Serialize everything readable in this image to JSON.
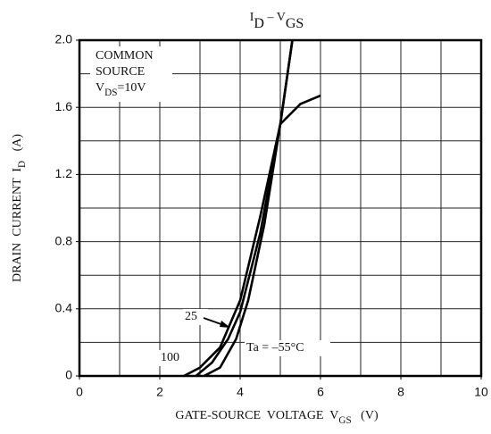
{
  "chart_data": {
    "type": "line",
    "title": [
      {
        "text": "I"
      },
      {
        "text": "D",
        "sub": true
      },
      {
        "text": " – "
      },
      {
        "text": "V"
      },
      {
        "text": "GS",
        "sub": true
      }
    ],
    "xlabel": [
      {
        "text": "GATE-SOURCE  VOLTAGE  "
      },
      {
        "text": "V"
      },
      {
        "text": "GS",
        "sub": true
      },
      {
        "text": "   (V)"
      }
    ],
    "ylabel": [
      {
        "text": "DRAIN  CURRENT  I"
      },
      {
        "text": "D",
        "sub": true
      },
      {
        "text": "   (A)"
      }
    ],
    "annotation": [
      [
        {
          "text": "COMMON"
        }
      ],
      [
        {
          "text": "SOURCE"
        }
      ],
      [
        {
          "text": "V"
        },
        {
          "text": "DS",
          "sub": true
        },
        {
          "text": "=10V"
        }
      ]
    ],
    "xlim": [
      0,
      10
    ],
    "ylim": [
      0,
      2
    ],
    "xticks": [
      0,
      2,
      4,
      6,
      8,
      10
    ],
    "yticks": [
      0,
      0.4,
      0.8,
      1.2,
      1.6,
      {
        "value": 2,
        "label": "2.0"
      }
    ],
    "xgrid": [
      1,
      2,
      3,
      4,
      5,
      6,
      7,
      8,
      9
    ],
    "ygrid": [
      0.2,
      0.4,
      0.6,
      0.8,
      1,
      1.2,
      1.4,
      1.6,
      1.8
    ],
    "grid": true,
    "series": [
      {
        "name": "100",
        "color": "#000",
        "x": [
          2.6,
          3.0,
          3.5,
          4.0,
          4.5,
          5.0,
          5.5,
          6.0
        ],
        "values": [
          0,
          0.05,
          0.17,
          0.45,
          0.95,
          1.5,
          1.62,
          1.67
        ]
      },
      {
        "name": "25",
        "color": "#000",
        "x": [
          2.9,
          3.3,
          3.7,
          4.0,
          4.5,
          5.0,
          5.3
        ],
        "values": [
          0,
          0.08,
          0.22,
          0.38,
          0.85,
          1.5,
          2.0
        ]
      },
      {
        "name": "Ta = –55°C",
        "color": "#000",
        "x": [
          3.1,
          3.5,
          3.9,
          4.2,
          4.6,
          5.0,
          5.3
        ],
        "values": [
          0,
          0.05,
          0.22,
          0.45,
          0.9,
          1.5,
          2.0
        ]
      }
    ]
  }
}
